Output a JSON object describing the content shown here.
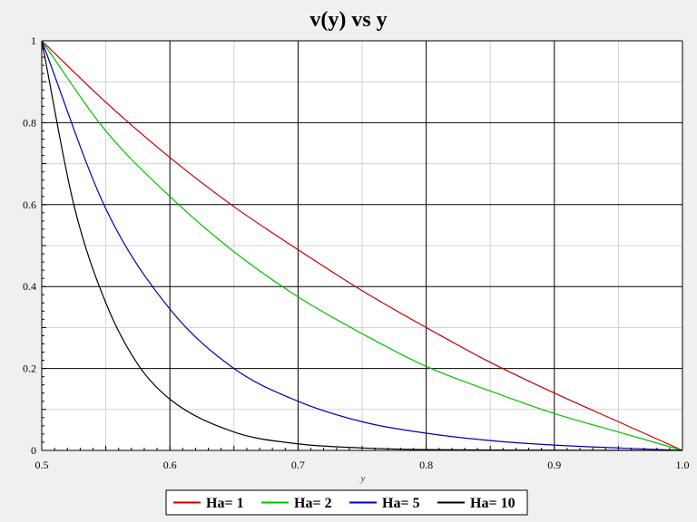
{
  "chart_data": {
    "type": "line",
    "title": "v(y) vs y",
    "xlabel": "y",
    "ylabel": "",
    "xlim": [
      0.5,
      1.0
    ],
    "ylim": [
      0,
      1
    ],
    "xticks": [
      "0.5",
      "0.6",
      "0.7",
      "0.8",
      "0.9",
      "1.0"
    ],
    "yticks": [
      "0",
      "0.2",
      "0.4",
      "0.6",
      "0.8",
      "1"
    ],
    "grid": true,
    "legend_position": "bottom",
    "series": [
      {
        "name": "Ha= 1",
        "color": "#c00000",
        "x": [
          0.5,
          0.55,
          0.6,
          0.65,
          0.7,
          0.75,
          0.8,
          0.85,
          0.9,
          0.95,
          1.0
        ],
        "y": [
          1.0,
          0.85,
          0.715,
          0.595,
          0.49,
          0.39,
          0.3,
          0.215,
          0.14,
          0.07,
          0.0
        ]
      },
      {
        "name": "Ha= 2",
        "color": "#00c000",
        "x": [
          0.5,
          0.55,
          0.6,
          0.65,
          0.7,
          0.75,
          0.8,
          0.85,
          0.9,
          0.95,
          1.0
        ],
        "y": [
          1.0,
          0.78,
          0.62,
          0.485,
          0.375,
          0.285,
          0.205,
          0.145,
          0.09,
          0.045,
          0.0
        ]
      },
      {
        "name": "Ha= 5",
        "color": "#0000b0",
        "x": [
          0.5,
          0.55,
          0.6,
          0.65,
          0.7,
          0.75,
          0.8,
          0.85,
          0.9,
          0.95,
          1.0
        ],
        "y": [
          1.0,
          0.59,
          0.345,
          0.2,
          0.12,
          0.07,
          0.042,
          0.024,
          0.013,
          0.006,
          0.0
        ]
      },
      {
        "name": "Ha= 10",
        "color": "#000000",
        "x": [
          0.5,
          0.525,
          0.55,
          0.575,
          0.6,
          0.65,
          0.7,
          0.75,
          0.8,
          0.9,
          1.0
        ],
        "y": [
          1.0,
          0.6,
          0.36,
          0.21,
          0.125,
          0.045,
          0.016,
          0.006,
          0.002,
          0.0005,
          0.0
        ]
      }
    ]
  }
}
